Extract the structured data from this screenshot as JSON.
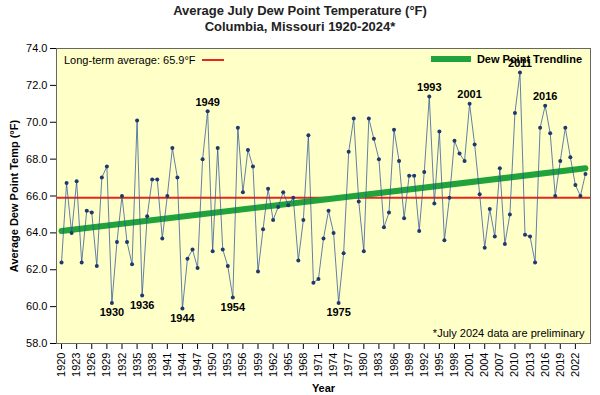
{
  "chart_data": {
    "type": "line",
    "title": "Average July Dew Point Temperature (°F)",
    "subtitle": "Columbia, Missouri 1920-2024*",
    "x_label": "Year",
    "y_label": "Average Dew Point Temp (°F)",
    "x": [
      1920,
      1921,
      1922,
      1923,
      1924,
      1925,
      1926,
      1927,
      1928,
      1929,
      1930,
      1931,
      1932,
      1933,
      1934,
      1935,
      1936,
      1937,
      1938,
      1939,
      1940,
      1941,
      1942,
      1943,
      1944,
      1945,
      1946,
      1947,
      1948,
      1949,
      1950,
      1951,
      1952,
      1953,
      1954,
      1955,
      1956,
      1957,
      1958,
      1959,
      1960,
      1961,
      1962,
      1963,
      1964,
      1965,
      1966,
      1967,
      1968,
      1969,
      1970,
      1971,
      1972,
      1973,
      1974,
      1975,
      1976,
      1977,
      1978,
      1979,
      1980,
      1981,
      1982,
      1983,
      1984,
      1985,
      1986,
      1987,
      1988,
      1989,
      1990,
      1991,
      1992,
      1993,
      1994,
      1995,
      1996,
      1997,
      1998,
      1999,
      2000,
      2001,
      2002,
      2003,
      2004,
      2005,
      2006,
      2007,
      2008,
      2009,
      2010,
      2011,
      2012,
      2013,
      2014,
      2015,
      2016,
      2017,
      2018,
      2019,
      2020,
      2021,
      2022,
      2023,
      2024
    ],
    "series": [
      {
        "name": "Average July Dew Point",
        "color": "#2f5597",
        "marker": "circle",
        "line_style": "solid",
        "values": [
          62.4,
          66.7,
          64.0,
          66.8,
          62.4,
          65.2,
          65.1,
          62.2,
          67.0,
          67.6,
          60.2,
          63.5,
          66.0,
          63.5,
          62.3,
          70.1,
          60.6,
          64.9,
          66.9,
          66.9,
          63.7,
          66.0,
          68.6,
          67.0,
          59.9,
          62.6,
          63.1,
          62.1,
          68.0,
          70.6,
          63.0,
          68.6,
          63.1,
          62.2,
          60.5,
          69.7,
          66.2,
          68.5,
          67.6,
          61.9,
          64.2,
          66.4,
          64.7,
          65.4,
          66.2,
          65.5,
          65.9,
          62.5,
          64.7,
          69.3,
          61.3,
          61.5,
          63.7,
          65.2,
          64.0,
          60.2,
          62.9,
          68.4,
          70.2,
          65.7,
          63.0,
          70.2,
          69.1,
          68.0,
          64.3,
          65.1,
          69.6,
          67.9,
          64.8,
          67.1,
          67.1,
          64.1,
          67.3,
          71.4,
          65.6,
          69.5,
          63.6,
          65.9,
          69.0,
          68.3,
          67.9,
          71.0,
          68.8,
          66.1,
          63.2,
          65.3,
          63.8,
          67.5,
          63.4,
          65.0,
          70.5,
          72.7,
          63.9,
          63.8,
          62.4,
          69.7,
          70.9,
          69.4,
          66.0,
          67.9,
          69.7,
          68.1,
          66.6,
          66.0,
          67.2
        ]
      },
      {
        "name": "Dew Point Trendline",
        "color": "#1fa33a",
        "line_style": "solid",
        "x": [
          1920,
          2024
        ],
        "values": [
          64.1,
          67.5
        ]
      }
    ],
    "reference_line": {
      "value": 65.9,
      "label": "Long-term average: 65.9°F",
      "color": "#e8261e"
    },
    "annotations": [
      {
        "text": "1930",
        "x": 1930,
        "position": "below"
      },
      {
        "text": "1936",
        "x": 1936,
        "position": "below"
      },
      {
        "text": "1944",
        "x": 1944,
        "position": "below"
      },
      {
        "text": "1949",
        "x": 1949,
        "position": "above"
      },
      {
        "text": "1954",
        "x": 1954,
        "position": "below"
      },
      {
        "text": "1975",
        "x": 1975,
        "position": "below"
      },
      {
        "text": "1993",
        "x": 1993,
        "position": "above"
      },
      {
        "text": "2001",
        "x": 2001,
        "position": "above"
      },
      {
        "text": "2011",
        "x": 2011,
        "position": "above"
      },
      {
        "text": "2016",
        "x": 2016,
        "position": "above"
      }
    ],
    "footnote": "*July 2024 data are preliminary",
    "xlim": [
      1919,
      2025
    ],
    "xticks": [
      1920,
      1923,
      1926,
      1929,
      1932,
      1935,
      1938,
      1941,
      1944,
      1947,
      1950,
      1953,
      1956,
      1959,
      1962,
      1965,
      1968,
      1971,
      1974,
      1977,
      1980,
      1983,
      1986,
      1989,
      1992,
      1995,
      1998,
      2001,
      2004,
      2007,
      2010,
      2013,
      2016,
      2019,
      2022
    ],
    "ylim": [
      58,
      74
    ],
    "yticks": [
      {
        "value": 58,
        "label": "58.0"
      },
      {
        "value": 60,
        "label": "60.0"
      },
      {
        "value": 62,
        "label": "62.0"
      },
      {
        "value": 64,
        "label": "64.0"
      },
      {
        "value": 66,
        "label": "66.0"
      },
      {
        "value": 68,
        "label": "68.0"
      },
      {
        "value": 70,
        "label": "70.0"
      },
      {
        "value": 72,
        "label": "72.0"
      },
      {
        "value": 74,
        "label": "74.0"
      }
    ],
    "grid": false,
    "legend": "top-right"
  }
}
